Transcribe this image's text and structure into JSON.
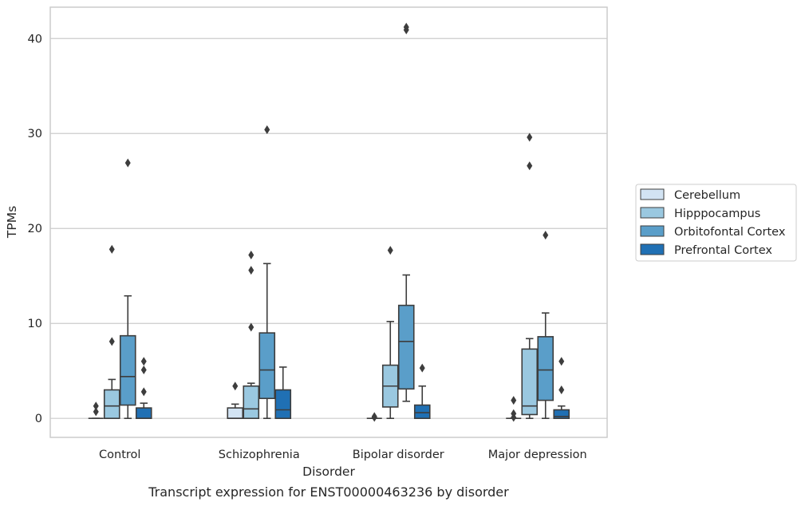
{
  "chart_data": {
    "type": "box",
    "title": "",
    "caption": "Transcript expression for ENST00000463236 by disorder",
    "xlabel": "Disorder",
    "ylabel": "TPMs",
    "ylim": [
      -2,
      43.3
    ],
    "yticks": [
      0,
      10,
      20,
      30,
      40
    ],
    "ytick_labels": [
      "0",
      "10",
      "20",
      "30",
      "40"
    ],
    "grid": "horizontal",
    "legend_placement": "right-outside",
    "categories": [
      "Control",
      "Schizophrenia",
      "Bipolar disorder",
      "Major depression"
    ],
    "series": [
      {
        "name": "Cerebellum",
        "color": "#d2e3f3",
        "boxes": [
          {
            "whisker_low": 0,
            "q1": 0,
            "median": 0,
            "q3": 0,
            "whisker_high": 0,
            "outliers": [
              0.7,
              1.3
            ]
          },
          {
            "whisker_low": 0,
            "q1": 0,
            "median": 0,
            "q3": 1.1,
            "whisker_high": 1.5,
            "outliers": [
              3.4
            ]
          },
          {
            "whisker_low": 0,
            "q1": 0,
            "median": 0,
            "q3": 0,
            "whisker_high": 0,
            "outliers": [
              0.1,
              0.2
            ]
          },
          {
            "whisker_low": 0,
            "q1": 0,
            "median": 0,
            "q3": 0,
            "whisker_high": 0,
            "outliers": [
              0.1,
              0.5,
              1.9
            ]
          }
        ]
      },
      {
        "name": "Hipppocampus",
        "color": "#9ac8e0",
        "boxes": [
          {
            "whisker_low": 0,
            "q1": 0,
            "median": 1.3,
            "q3": 3.0,
            "whisker_high": 4.1,
            "outliers": [
              8.1,
              17.8
            ]
          },
          {
            "whisker_low": 0,
            "q1": 0,
            "median": 1.0,
            "q3": 3.4,
            "whisker_high": 3.7,
            "outliers": [
              9.6,
              15.6,
              17.2
            ]
          },
          {
            "whisker_low": 0,
            "q1": 1.2,
            "median": 3.4,
            "q3": 5.6,
            "whisker_high": 10.2,
            "outliers": [
              17.7
            ]
          },
          {
            "whisker_low": 0,
            "q1": 0.4,
            "median": 1.3,
            "q3": 7.3,
            "whisker_high": 8.4,
            "outliers": [
              26.6,
              29.6
            ]
          }
        ]
      },
      {
        "name": "Orbitofontal Cortex",
        "color": "#5a9ec9",
        "boxes": [
          {
            "whisker_low": 0,
            "q1": 1.4,
            "median": 4.4,
            "q3": 8.7,
            "whisker_high": 12.9,
            "outliers": [
              26.9
            ]
          },
          {
            "whisker_low": 0,
            "q1": 2.1,
            "median": 5.1,
            "q3": 9.0,
            "whisker_high": 16.3,
            "outliers": [
              30.4
            ]
          },
          {
            "whisker_low": 1.8,
            "q1": 3.1,
            "median": 8.1,
            "q3": 11.9,
            "whisker_high": 15.1,
            "outliers": [
              40.9,
              41.2
            ]
          },
          {
            "whisker_low": 0,
            "q1": 1.9,
            "median": 5.1,
            "q3": 8.6,
            "whisker_high": 11.1,
            "outliers": [
              19.3
            ]
          }
        ]
      },
      {
        "name": "Prefrontal Cortex",
        "color": "#2070b4",
        "boxes": [
          {
            "whisker_low": 0,
            "q1": 0,
            "median": 0,
            "q3": 1.1,
            "whisker_high": 1.6,
            "outliers": [
              2.8,
              5.1,
              6.0
            ]
          },
          {
            "whisker_low": 0,
            "q1": 0,
            "median": 0.9,
            "q3": 3.0,
            "whisker_high": 5.4,
            "outliers": []
          },
          {
            "whisker_low": 0,
            "q1": 0,
            "median": 0.6,
            "q3": 1.4,
            "whisker_high": 3.4,
            "outliers": [
              5.3
            ]
          },
          {
            "whisker_low": 0,
            "q1": 0,
            "median": 0.2,
            "q3": 0.9,
            "whisker_high": 1.3,
            "outliers": [
              3.0,
              6.0
            ]
          }
        ]
      }
    ]
  }
}
